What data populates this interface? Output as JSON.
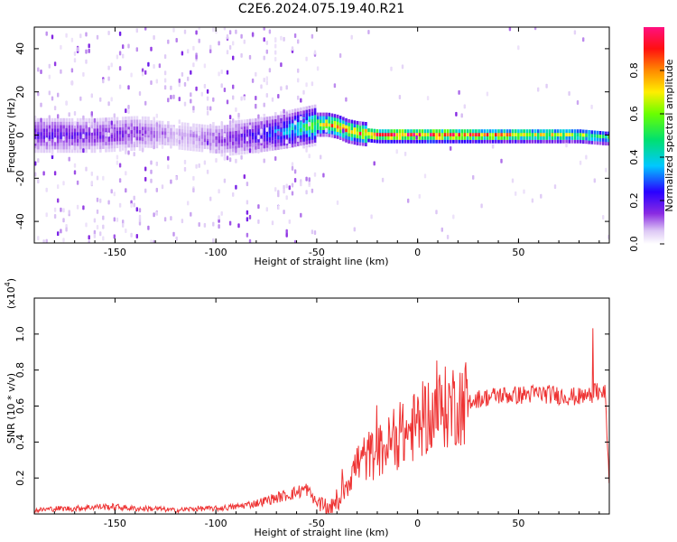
{
  "title": "C2E6.2024.075.19.40.R21",
  "chart_data": [
    {
      "type": "heatmap",
      "xlabel": "Height of straight line (km)",
      "ylabel": "Frequency (Hz)",
      "xlim": [
        -190,
        95
      ],
      "ylim": [
        -50,
        50
      ],
      "xticks": [
        -150,
        -100,
        -50,
        0,
        50
      ],
      "yticks": [
        -40,
        -20,
        0,
        20,
        40
      ],
      "colorbar": {
        "label": "Normalized spectral amplitude",
        "range": [
          0,
          1
        ],
        "ticks": [
          "0.0",
          "0.2",
          "0.4",
          "0.6",
          "0.8"
        ],
        "tick_values": [
          0.0,
          0.2,
          0.4,
          0.6,
          0.8
        ]
      },
      "ridge": {
        "x": [
          -175,
          -160,
          -140,
          -120,
          -100,
          -80,
          -65,
          -55,
          -50,
          -45,
          -40,
          -35,
          -30,
          -20,
          -10,
          0,
          20,
          50,
          80,
          93
        ],
        "frequency": [
          0,
          0,
          1,
          0,
          -2,
          0,
          2,
          4,
          5,
          5,
          4,
          2,
          1,
          0,
          0,
          0,
          0,
          0,
          0,
          -1
        ],
        "amplitude": [
          0.18,
          0.16,
          0.15,
          0.08,
          0.12,
          0.22,
          0.35,
          0.5,
          0.6,
          0.7,
          0.8,
          0.75,
          0.82,
          0.9,
          0.92,
          0.92,
          0.85,
          0.7,
          0.6,
          0.5
        ]
      }
    },
    {
      "type": "line",
      "xlabel": "Height of straight line (km)",
      "ylabel": "SNR (10 * v/v)",
      "scale_label": "(x10",
      "scale_exponent": "4",
      "scale_suffix": ")",
      "xlim": [
        -190,
        95
      ],
      "ylim": [
        0,
        1.2
      ],
      "xticks": [
        -150,
        -100,
        -50,
        0,
        50
      ],
      "yticks": [
        "0.2",
        "0.4",
        "0.6",
        "0.8",
        "1.0"
      ],
      "ytick_values": [
        0.2,
        0.4,
        0.6,
        0.8,
        1.0
      ],
      "color": "#ee3333",
      "series": [
        {
          "x": [
            -190,
            -180,
            -170,
            -160,
            -150,
            -140,
            -130,
            -120,
            -110,
            -100,
            -90,
            -80,
            -70,
            -60,
            -55,
            -50,
            -45,
            -40,
            -35,
            -30,
            -25,
            -20,
            -15,
            -10,
            -5,
            0,
            5,
            10,
            20,
            30,
            40,
            50,
            60,
            70,
            80,
            85,
            90,
            93,
            95
          ],
          "y": [
            0.02,
            0.03,
            0.03,
            0.04,
            0.04,
            0.03,
            0.03,
            0.02,
            0.03,
            0.03,
            0.04,
            0.06,
            0.09,
            0.12,
            0.14,
            0.06,
            0.03,
            0.05,
            0.18,
            0.28,
            0.32,
            0.34,
            0.38,
            0.42,
            0.45,
            0.5,
            0.55,
            0.57,
            0.62,
            0.64,
            0.66,
            0.66,
            0.67,
            0.66,
            0.65,
            0.66,
            0.68,
            0.7,
            0.15
          ]
        }
      ]
    }
  ]
}
